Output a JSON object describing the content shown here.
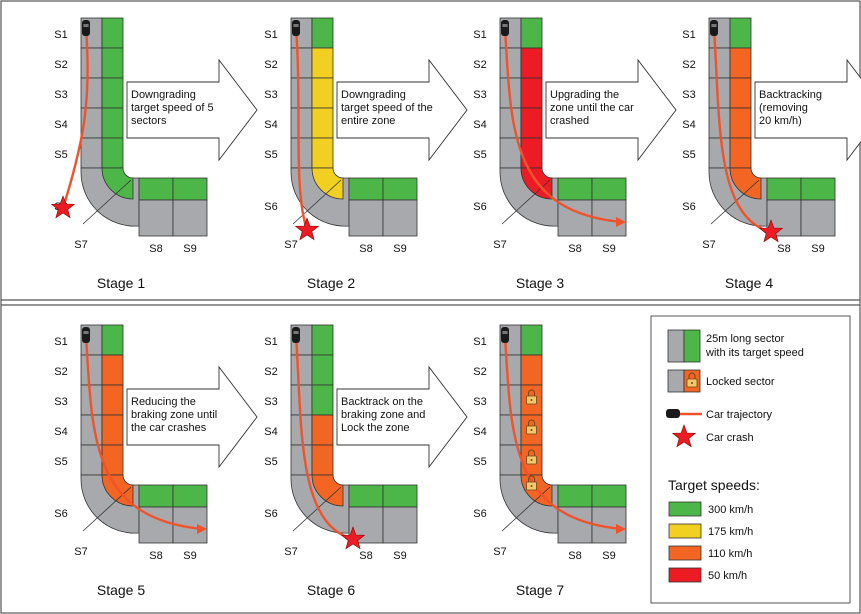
{
  "colors": {
    "grey": "#a7a9ac",
    "green": "#4cb748",
    "yellow": "#f2d022",
    "orange": "#f26522",
    "red": "#ed1c24",
    "trajectory": "#f0532c",
    "crash": "#ed1c24",
    "frame": "#555555"
  },
  "sector_labels": [
    "S1",
    "S2",
    "S3",
    "S4",
    "S5",
    "S6",
    "S7",
    "S8",
    "S9"
  ],
  "stages": [
    {
      "title": "Stage 1",
      "arrow_text": [
        "Downgrading",
        "target speed of 5",
        "sectors"
      ],
      "column_colors": [
        "green",
        "green",
        "green",
        "green",
        "green"
      ],
      "bottom_colors": [
        "green",
        "green"
      ],
      "corner_color": "green",
      "crash_at": "S6",
      "locks": []
    },
    {
      "title": "Stage 2",
      "arrow_text": [
        "Downgrading",
        "target speed of the",
        "entire zone"
      ],
      "column_colors": [
        "green",
        "yellow",
        "yellow",
        "yellow",
        "yellow"
      ],
      "bottom_colors": [
        "green",
        "green"
      ],
      "corner_color": "yellow",
      "crash_at": "S7",
      "locks": []
    },
    {
      "title": "Stage 3",
      "arrow_text": [
        "Upgrading the",
        "zone until the car",
        "crashed"
      ],
      "column_colors": [
        "green",
        "red",
        "red",
        "red",
        "red"
      ],
      "bottom_colors": [
        "green",
        "green"
      ],
      "corner_color": "red",
      "crash_at": null,
      "locks": []
    },
    {
      "title": "Stage 4",
      "arrow_text": [
        "Backtracking",
        "(removing",
        "20 km/h)"
      ],
      "column_colors": [
        "green",
        "orange",
        "orange",
        "orange",
        "orange"
      ],
      "bottom_colors": [
        "green",
        "green"
      ],
      "corner_color": "orange",
      "crash_at": "S8",
      "locks": []
    },
    {
      "title": "Stage 5",
      "arrow_text": [
        "Reducing the",
        "braking zone until",
        "the car crashes"
      ],
      "column_colors": [
        "green",
        "orange",
        "orange",
        "orange",
        "orange"
      ],
      "bottom_colors": [
        "green",
        "green"
      ],
      "corner_color": "orange",
      "crash_at": null,
      "locks": []
    },
    {
      "title": "Stage 6",
      "arrow_text": [
        "Backtrack on the",
        "braking zone and",
        "Lock the zone"
      ],
      "column_colors": [
        "green",
        "green",
        "green",
        "orange",
        "orange"
      ],
      "bottom_colors": [
        "green",
        "green"
      ],
      "corner_color": "orange",
      "crash_at": "S8",
      "locks": []
    },
    {
      "title": "Stage 7",
      "arrow_text": [],
      "column_colors": [
        "green",
        "orange",
        "orange",
        "orange",
        "orange"
      ],
      "bottom_colors": [
        "green",
        "green"
      ],
      "corner_color": "orange",
      "crash_at": null,
      "locks": [
        "S3",
        "S4",
        "S5",
        "S6"
      ]
    }
  ],
  "legend": {
    "sector_text": [
      "25m long sector",
      "with its target speed"
    ],
    "locked_text": "Locked sector",
    "trajectory_text": "Car trajectory",
    "crash_text": "Car crash",
    "speeds_title": "Target speeds:",
    "speeds": [
      {
        "label": "300 km/h",
        "color": "green"
      },
      {
        "label": "175 km/h",
        "color": "yellow"
      },
      {
        "label": "110 km/h",
        "color": "orange"
      },
      {
        "label": "50 km/h",
        "color": "red"
      }
    ]
  }
}
